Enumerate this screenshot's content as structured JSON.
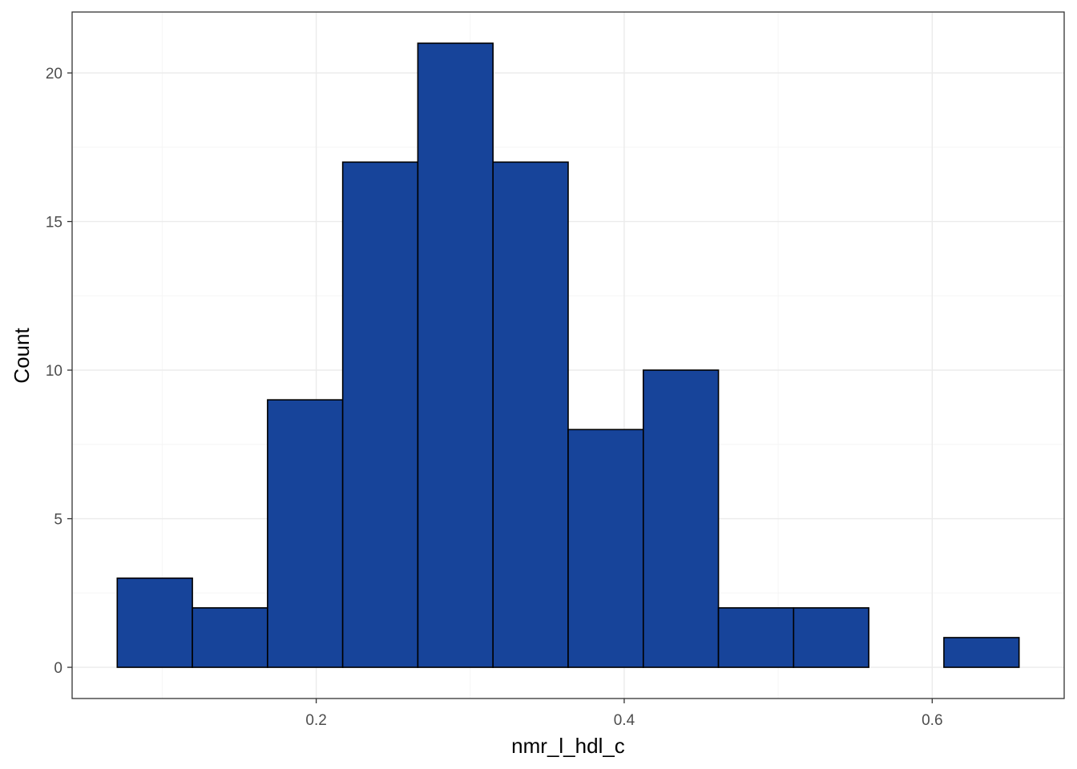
{
  "chart_data": {
    "type": "bar",
    "subtype": "histogram",
    "title": "",
    "xlabel": "nmr_l_hdl_c",
    "ylabel": "Count",
    "bin_width": 0.0488,
    "bins": [
      {
        "x0": 0.0708,
        "x1": 0.1196,
        "count": 3
      },
      {
        "x0": 0.1196,
        "x1": 0.1684,
        "count": 2
      },
      {
        "x0": 0.1684,
        "x1": 0.2172,
        "count": 9
      },
      {
        "x0": 0.2172,
        "x1": 0.266,
        "count": 17
      },
      {
        "x0": 0.266,
        "x1": 0.3148,
        "count": 21
      },
      {
        "x0": 0.3148,
        "x1": 0.3636,
        "count": 17
      },
      {
        "x0": 0.3636,
        "x1": 0.4124,
        "count": 8
      },
      {
        "x0": 0.4124,
        "x1": 0.4612,
        "count": 10
      },
      {
        "x0": 0.4612,
        "x1": 0.51,
        "count": 2
      },
      {
        "x0": 0.51,
        "x1": 0.5588,
        "count": 2
      },
      {
        "x0": 0.5588,
        "x1": 0.6076,
        "count": 0
      },
      {
        "x0": 0.6076,
        "x1": 0.6564,
        "count": 1
      }
    ],
    "xlim": [
      0.0415,
      0.6857
    ],
    "ylim": [
      -1.05,
      22.05
    ],
    "x_ticks": [
      {
        "value": 0.2,
        "label": "0.2"
      },
      {
        "value": 0.4,
        "label": "0.4"
      },
      {
        "value": 0.6,
        "label": "0.6"
      }
    ],
    "x_minor_ticks": [
      0.1,
      0.3,
      0.5
    ],
    "y_ticks": [
      {
        "value": 0,
        "label": "0"
      },
      {
        "value": 5,
        "label": "5"
      },
      {
        "value": 10,
        "label": "10"
      },
      {
        "value": 15,
        "label": "15"
      },
      {
        "value": 20,
        "label": "20"
      }
    ],
    "y_minor_ticks": [
      2.5,
      7.5,
      12.5,
      17.5
    ],
    "grid": true,
    "legend": "none",
    "colors": {
      "bar_fill": "#17449A",
      "bar_stroke": "#000000",
      "grid_major": "#EBEBEB",
      "grid_minor": "#F5F5F5",
      "panel_border": "#333333",
      "tick_text": "#4D4D4D",
      "axis_title": "#000000"
    }
  }
}
